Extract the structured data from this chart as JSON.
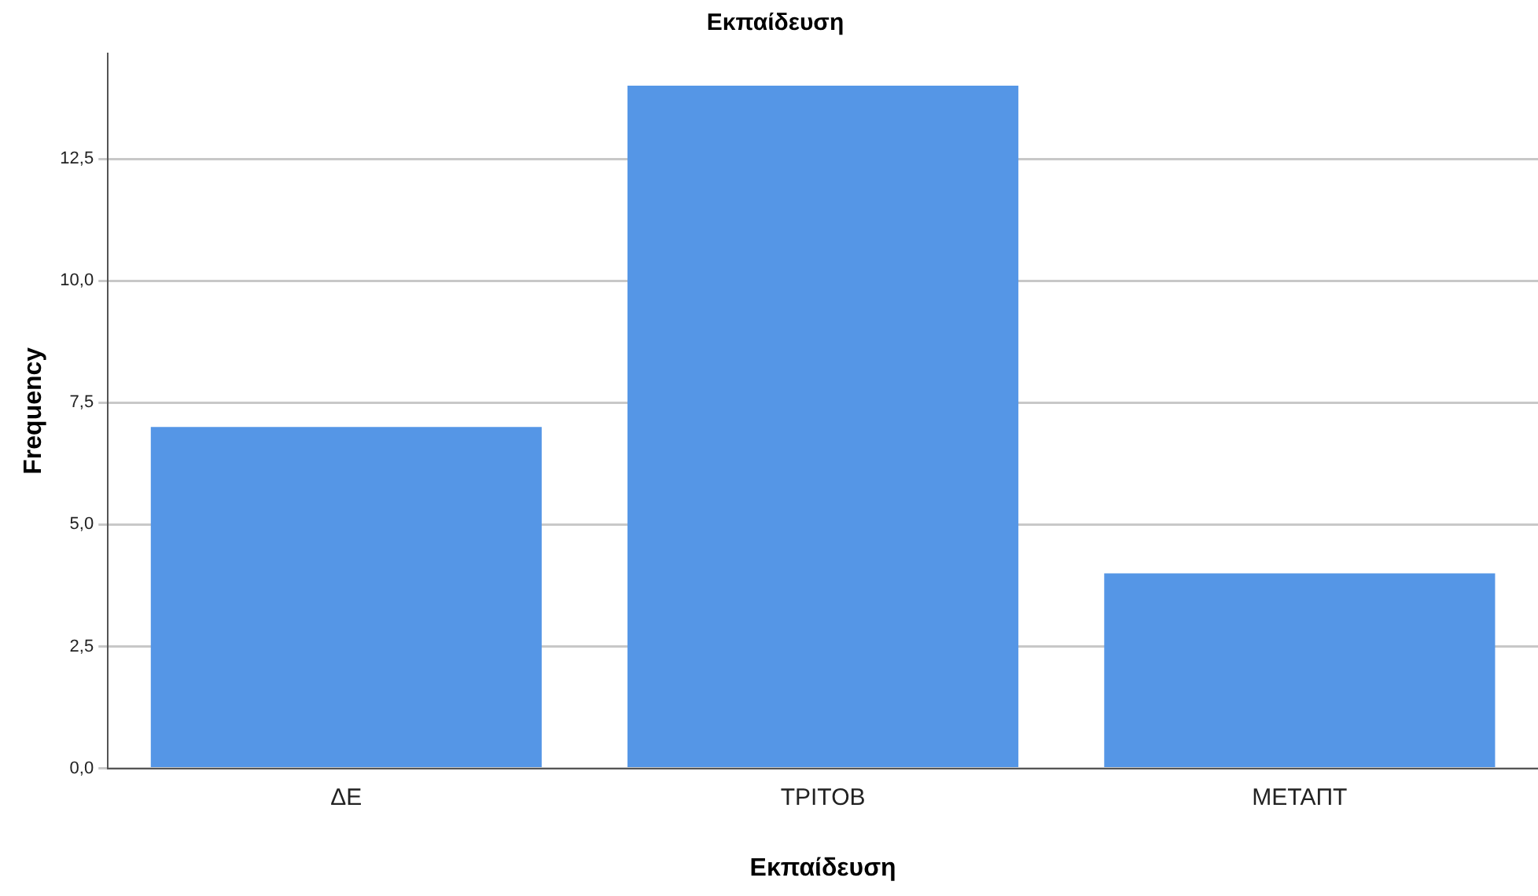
{
  "chart_data": {
    "type": "bar",
    "title": "Εκπαίδευση",
    "xlabel": "Εκπαίδευση",
    "ylabel": "Frequency",
    "categories": [
      "ΔΕ",
      "ΤΡΙΤΟΒ",
      "ΜΕΤΑΠΤ"
    ],
    "values": [
      7,
      14,
      4
    ],
    "color": "#5596e6",
    "ylim": [
      0,
      14.66
    ],
    "yticks": [
      {
        "value": 0,
        "label": "0,0"
      },
      {
        "value": 2.5,
        "label": "2,5"
      },
      {
        "value": 5,
        "label": "5,0"
      },
      {
        "value": 7.5,
        "label": "7,5"
      },
      {
        "value": 10,
        "label": "10,0"
      },
      {
        "value": 12.5,
        "label": "12,5"
      }
    ],
    "grid": "y",
    "legend": false
  }
}
